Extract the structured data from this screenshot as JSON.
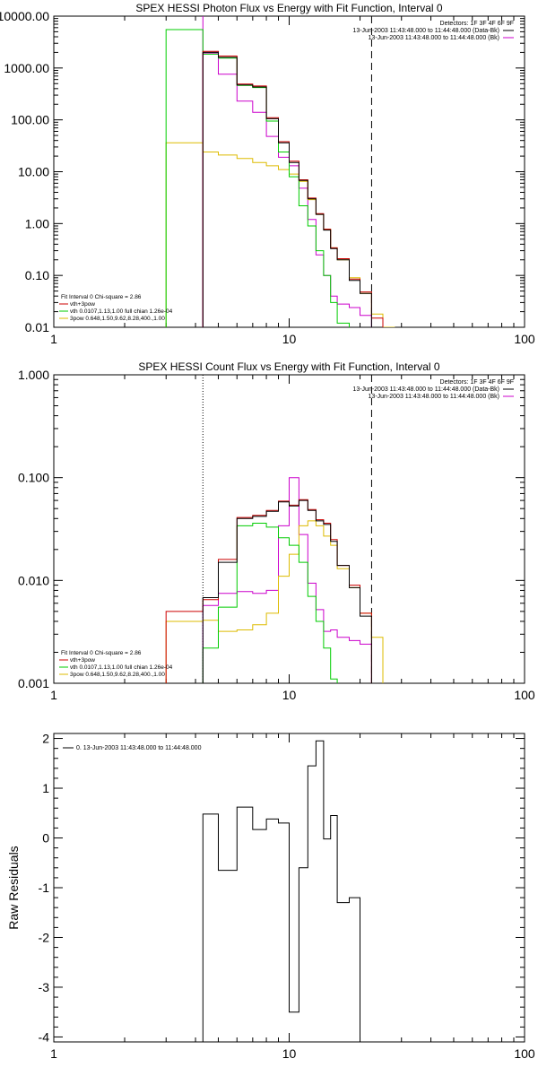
{
  "chart_data": [
    {
      "type": "line",
      "title": "SPEX HESSI Photon Flux vs Energy with Fit Function, Interval 0",
      "xscale": "log",
      "yscale": "log",
      "xlim": [
        1,
        100
      ],
      "ylim": [
        0.01,
        10000
      ],
      "x_ticks": [
        {
          "v": 1,
          "label": "1"
        },
        {
          "v": 10,
          "label": "10"
        },
        {
          "v": 100,
          "label": "100"
        }
      ],
      "y_ticks": [
        {
          "v": 0.01,
          "label": "0.01"
        },
        {
          "v": 0.1,
          "label": "0.10"
        },
        {
          "v": 1,
          "label": "1.00"
        },
        {
          "v": 10,
          "label": "10.00"
        },
        {
          "v": 100,
          "label": "100.00"
        },
        {
          "v": 1000,
          "label": "1000.00"
        },
        {
          "v": 10000,
          "label": "10000.00"
        }
      ],
      "vlines": [
        {
          "x": 4.3,
          "style": "solid",
          "color": "#cc00cc"
        },
        {
          "x": 22.4,
          "style": "dashed",
          "color": "#000000"
        }
      ],
      "info_text": [
        "Detectors: 1F 3F 4F 6F 9F"
      ],
      "legend_topright": [
        {
          "text": "13-Jun-2003 11:43:48.000 to 11:44:48.000 (Data-Bk)",
          "color": "#000000"
        },
        {
          "text": "13-Jun-2003 11:43:48.000 to 11:44:48.000 (Bk)",
          "color": "#cc00cc"
        }
      ],
      "legend_bottomleft": [
        {
          "text": "Fit Interval 0   Chi-square = 2.86",
          "color": null
        },
        {
          "text": "vth+3pow",
          "color": "#cc0000"
        },
        {
          "text": "vth 0.0107,1.13,1.00  full chian 1.26e-04",
          "color": "#00cc00"
        },
        {
          "text": "3pow 0.648,1.50,9.62,8.28,400.,1.00",
          "color": "#ddbb00"
        }
      ],
      "edges": [
        3.0,
        4.3,
        5.0,
        6.0,
        7.0,
        8.0,
        9.0,
        10.0,
        11.0,
        12.0,
        13.0,
        14.0,
        15.0,
        16.0,
        18.0,
        20.0,
        22.4,
        25.0,
        28.0
      ],
      "series": [
        {
          "name": "data",
          "color": "#000000",
          "values": [
            null,
            2000,
            1600,
            470,
            430,
            105,
            36,
            15,
            6.8,
            3.0,
            1.5,
            0.75,
            0.33,
            0.2,
            0.08,
            0.045,
            null,
            null
          ]
        },
        {
          "name": "vth+3pow",
          "color": "#cc0000",
          "values": [
            null,
            2100,
            1700,
            490,
            450,
            110,
            38,
            16,
            7.0,
            3.1,
            1.55,
            0.78,
            0.34,
            0.21,
            0.085,
            0.048,
            0.015,
            null
          ]
        },
        {
          "name": "vth",
          "color": "#00cc00",
          "values": [
            5500,
            1850,
            1550,
            460,
            420,
            95,
            24,
            8.0,
            2.2,
            0.9,
            0.3,
            0.1,
            0.03,
            0.012,
            0.003,
            null,
            null,
            null
          ]
        },
        {
          "name": "3pow",
          "color": "#ddbb00",
          "values": [
            36,
            24,
            21,
            18,
            15,
            13,
            11,
            9.0,
            6.5,
            2.9,
            1.5,
            0.78,
            0.34,
            0.2,
            0.09,
            0.045,
            0.018,
            0.01
          ]
        },
        {
          "name": "background",
          "color": "#cc00cc",
          "values": [
            null,
            1950,
            760,
            230,
            140,
            48,
            19,
            13,
            4.8,
            1.2,
            0.25,
            0.1,
            0.04,
            0.028,
            0.024,
            0.017,
            null,
            null
          ]
        }
      ]
    },
    {
      "type": "line",
      "title": "SPEX HESSI Count Flux vs Energy with Fit Function, Interval 0",
      "xscale": "log",
      "yscale": "log",
      "xlim": [
        1,
        100
      ],
      "ylim": [
        0.001,
        1.0
      ],
      "x_ticks": [
        {
          "v": 1,
          "label": "1"
        },
        {
          "v": 10,
          "label": "10"
        },
        {
          "v": 100,
          "label": "100"
        }
      ],
      "y_ticks": [
        {
          "v": 0.001,
          "label": "0.001"
        },
        {
          "v": 0.01,
          "label": "0.010"
        },
        {
          "v": 0.1,
          "label": "0.100"
        },
        {
          "v": 1,
          "label": "1.000"
        }
      ],
      "vlines": [
        {
          "x": 4.3,
          "style": "dotted",
          "color": "#000000"
        },
        {
          "x": 22.4,
          "style": "dashed",
          "color": "#000000"
        }
      ],
      "info_text": [
        "Detectors: 1F 3F 4F 6F 9F"
      ],
      "legend_topright": [
        {
          "text": "13-Jun-2003 11:43:48.000 to 11:44:48.000 (Data-Bk)",
          "color": "#000000"
        },
        {
          "text": "13-Jun-2003 11:43:48.000 to 11:44:48.000 (Bk)",
          "color": "#cc00cc"
        }
      ],
      "legend_bottomleft": [
        {
          "text": "Fit Interval 0   Chi-square = 2.86",
          "color": null
        },
        {
          "text": "vth+3pow",
          "color": "#cc0000"
        },
        {
          "text": "vth 0.0107,1.13,1.00  full chian 1.26e-04",
          "color": "#00cc00"
        },
        {
          "text": "3pow 0.648,1.50,9.62,8.28,400.,1.00",
          "color": "#ddbb00"
        }
      ],
      "edges": [
        3.0,
        4.3,
        5.0,
        6.0,
        7.0,
        8.0,
        9.0,
        10.0,
        11.0,
        12.0,
        13.0,
        14.0,
        15.0,
        16.0,
        18.0,
        20.0,
        22.4,
        25.0,
        28.0
      ],
      "series": [
        {
          "name": "data",
          "color": "#000000",
          "values": [
            null,
            0.0068,
            0.015,
            0.04,
            0.042,
            0.047,
            0.058,
            0.053,
            0.06,
            0.048,
            0.038,
            0.035,
            0.024,
            0.014,
            0.0085,
            0.0045,
            null,
            null
          ]
        },
        {
          "name": "vth+3pow",
          "color": "#cc0000",
          "values": [
            0.005,
            0.0065,
            0.016,
            0.041,
            0.043,
            0.048,
            0.059,
            0.054,
            0.061,
            0.049,
            0.039,
            0.036,
            0.025,
            0.014,
            0.009,
            0.0048,
            null,
            null
          ]
        },
        {
          "name": "vth",
          "color": "#00cc00",
          "values": [
            null,
            0.0022,
            0.0055,
            0.034,
            0.036,
            0.033,
            0.026,
            0.022,
            0.015,
            0.007,
            0.004,
            0.0022,
            0.0011,
            null,
            null,
            null,
            null,
            null
          ]
        },
        {
          "name": "3pow",
          "color": "#ddbb00",
          "values": [
            0.004,
            0.0041,
            0.0032,
            0.0033,
            0.0037,
            0.0048,
            0.011,
            0.018,
            0.034,
            0.038,
            0.034,
            0.027,
            0.022,
            0.013,
            0.0085,
            0.0048,
            0.0028,
            null
          ]
        },
        {
          "name": "background",
          "color": "#cc00cc",
          "values": [
            null,
            0.0057,
            0.0075,
            0.0078,
            0.0075,
            0.008,
            0.034,
            0.1,
            0.028,
            0.0094,
            0.0052,
            0.0032,
            0.0033,
            0.0028,
            0.0026,
            0.0024,
            null,
            null
          ]
        }
      ]
    },
    {
      "type": "line",
      "title": "",
      "xscale": "log",
      "yscale": "linear",
      "xlim": [
        1,
        100
      ],
      "ylim": [
        -4.1,
        2.1
      ],
      "ylabel": "Raw Residuals",
      "x_ticks": [
        {
          "v": 1,
          "label": "1"
        },
        {
          "v": 10,
          "label": "10"
        },
        {
          "v": 100,
          "label": "100"
        }
      ],
      "y_ticks": [
        {
          "v": -4,
          "label": "-4"
        },
        {
          "v": -3,
          "label": "-3"
        },
        {
          "v": -2,
          "label": "-2"
        },
        {
          "v": -1,
          "label": "-1"
        },
        {
          "v": 0,
          "label": "0"
        },
        {
          "v": 1,
          "label": "1"
        },
        {
          "v": 2,
          "label": "2"
        }
      ],
      "legend_topleft": [
        {
          "text": "0. 13-Jun-2003 11:43:48.000 to 11:44:48.000",
          "color": "#000000"
        }
      ],
      "edges": [
        4.3,
        5.0,
        6.0,
        7.0,
        8.0,
        9.0,
        10.0,
        11.0,
        12.0,
        13.0,
        14.0,
        15.0,
        16.0,
        18.0,
        20.0,
        22.4
      ],
      "series": [
        {
          "name": "residuals",
          "color": "#000000",
          "values": [
            0.48,
            -0.65,
            0.62,
            0.17,
            0.38,
            0.3,
            -3.5,
            -0.6,
            1.45,
            1.95,
            -0.02,
            0.45,
            -1.3,
            -1.2,
            null
          ]
        }
      ]
    }
  ]
}
